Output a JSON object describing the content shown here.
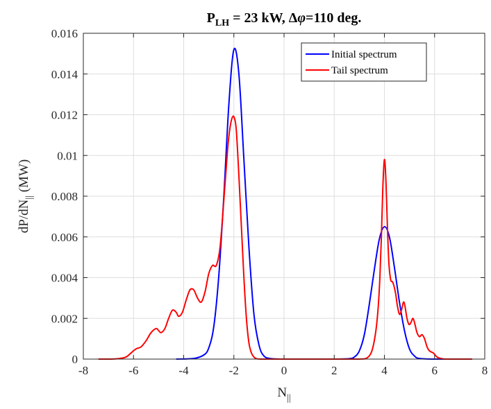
{
  "chart_data": {
    "type": "line",
    "title": {
      "prefix": "P",
      "sub": "LH",
      "mid": " = 23 kW, ",
      "delta": "Δ",
      "phi": "φ",
      "suffix": "=110 deg."
    },
    "xlabel": {
      "main": "N",
      "sub": "||"
    },
    "ylabel": {
      "main": "dP/dN",
      "sub": "||",
      "unit": " (MW)"
    },
    "xlim": [
      -8,
      8
    ],
    "ylim": [
      0,
      0.016
    ],
    "xticks": [
      -8,
      -6,
      -4,
      -2,
      0,
      2,
      4,
      6,
      8
    ],
    "xtick_labels": [
      "-8",
      "-6",
      "-4",
      "-2",
      "0",
      "2",
      "4",
      "6",
      "8"
    ],
    "yticks": [
      0,
      0.002,
      0.004,
      0.006,
      0.008,
      0.01,
      0.012,
      0.014,
      0.016
    ],
    "ytick_labels": [
      "0",
      "0.002",
      "0.004",
      "0.006",
      "0.008",
      "0.01",
      "0.012",
      "0.014",
      "0.016"
    ],
    "grid": true,
    "legend_position": "top-right",
    "series": [
      {
        "name": "Initial spectrum",
        "color": "#0000ff",
        "x": [
          -4.3,
          -3.6,
          -3.2,
          -3.0,
          -2.8,
          -2.6,
          -2.4,
          -2.2,
          -2.0,
          -1.8,
          -1.6,
          -1.4,
          -1.2,
          -1.0,
          -0.8,
          -0.5,
          0,
          1,
          2,
          2.6,
          2.8,
          3.0,
          3.2,
          3.4,
          3.6,
          3.8,
          4.0,
          4.2,
          4.4,
          4.6,
          4.8,
          5.0,
          5.2,
          5.4,
          6.0,
          7.0,
          7.5
        ],
        "y": [
          0.0,
          3e-05,
          0.0002,
          0.00055,
          0.0016,
          0.0041,
          0.008,
          0.0125,
          0.0152,
          0.014,
          0.0098,
          0.0055,
          0.0022,
          0.0007,
          0.00015,
          2e-05,
          0.0,
          0.0,
          0.0,
          2e-05,
          0.0001,
          0.0004,
          0.0012,
          0.0027,
          0.0044,
          0.0059,
          0.0065,
          0.006,
          0.0045,
          0.0028,
          0.0014,
          0.0005,
          0.00015,
          3e-05,
          0.0,
          0.0,
          0.0
        ]
      },
      {
        "name": "Tail spectrum",
        "color": "#ff0000",
        "x": [
          -7.4,
          -7.0,
          -6.6,
          -6.3,
          -6.1,
          -5.9,
          -5.7,
          -5.5,
          -5.3,
          -5.1,
          -5.0,
          -4.9,
          -4.75,
          -4.6,
          -4.45,
          -4.3,
          -4.2,
          -4.05,
          -3.9,
          -3.75,
          -3.6,
          -3.45,
          -3.3,
          -3.15,
          -3.0,
          -2.85,
          -2.7,
          -2.55,
          -2.4,
          -2.25,
          -2.15,
          -2.05,
          -1.97,
          -1.9,
          -1.8,
          -1.7,
          -1.6,
          -1.5,
          -1.4,
          -1.3,
          -1.2,
          -1.1,
          -0.9,
          -0.5,
          0,
          2,
          3.0,
          3.3,
          3.5,
          3.65,
          3.75,
          3.82,
          3.88,
          3.94,
          4.0,
          4.06,
          4.12,
          4.18,
          4.25,
          4.32,
          4.38,
          4.45,
          4.52,
          4.6,
          4.68,
          4.76,
          4.82,
          4.9,
          4.98,
          5.06,
          5.14,
          5.22,
          5.3,
          5.4,
          5.5,
          5.6,
          5.7,
          5.8,
          5.95,
          6.1,
          6.25,
          6.4,
          6.7,
          7.0,
          7.5
        ],
        "y": [
          0.0,
          0.0,
          2e-05,
          0.0001,
          0.0003,
          0.0005,
          0.0006,
          0.0009,
          0.0013,
          0.0015,
          0.0014,
          0.0013,
          0.0015,
          0.002,
          0.0024,
          0.0023,
          0.0021,
          0.0023,
          0.0029,
          0.0034,
          0.0034,
          0.003,
          0.0028,
          0.0033,
          0.0042,
          0.0046,
          0.0046,
          0.0055,
          0.0078,
          0.0103,
          0.0114,
          0.0119,
          0.0118,
          0.0112,
          0.009,
          0.0065,
          0.004,
          0.002,
          0.0008,
          0.0003,
          0.0001,
          2e-05,
          0.0,
          0.0,
          0.0,
          0.0,
          0.0,
          5e-05,
          0.0004,
          0.0013,
          0.0025,
          0.004,
          0.006,
          0.0085,
          0.0098,
          0.0088,
          0.0065,
          0.0047,
          0.0039,
          0.0038,
          0.0036,
          0.0032,
          0.0026,
          0.0022,
          0.0024,
          0.0028,
          0.0026,
          0.002,
          0.0017,
          0.0018,
          0.002,
          0.0017,
          0.0013,
          0.0011,
          0.0012,
          0.001,
          0.0006,
          0.0004,
          0.0003,
          0.0001,
          3e-05,
          0.0,
          0.0,
          0.0,
          0.0
        ]
      }
    ]
  }
}
